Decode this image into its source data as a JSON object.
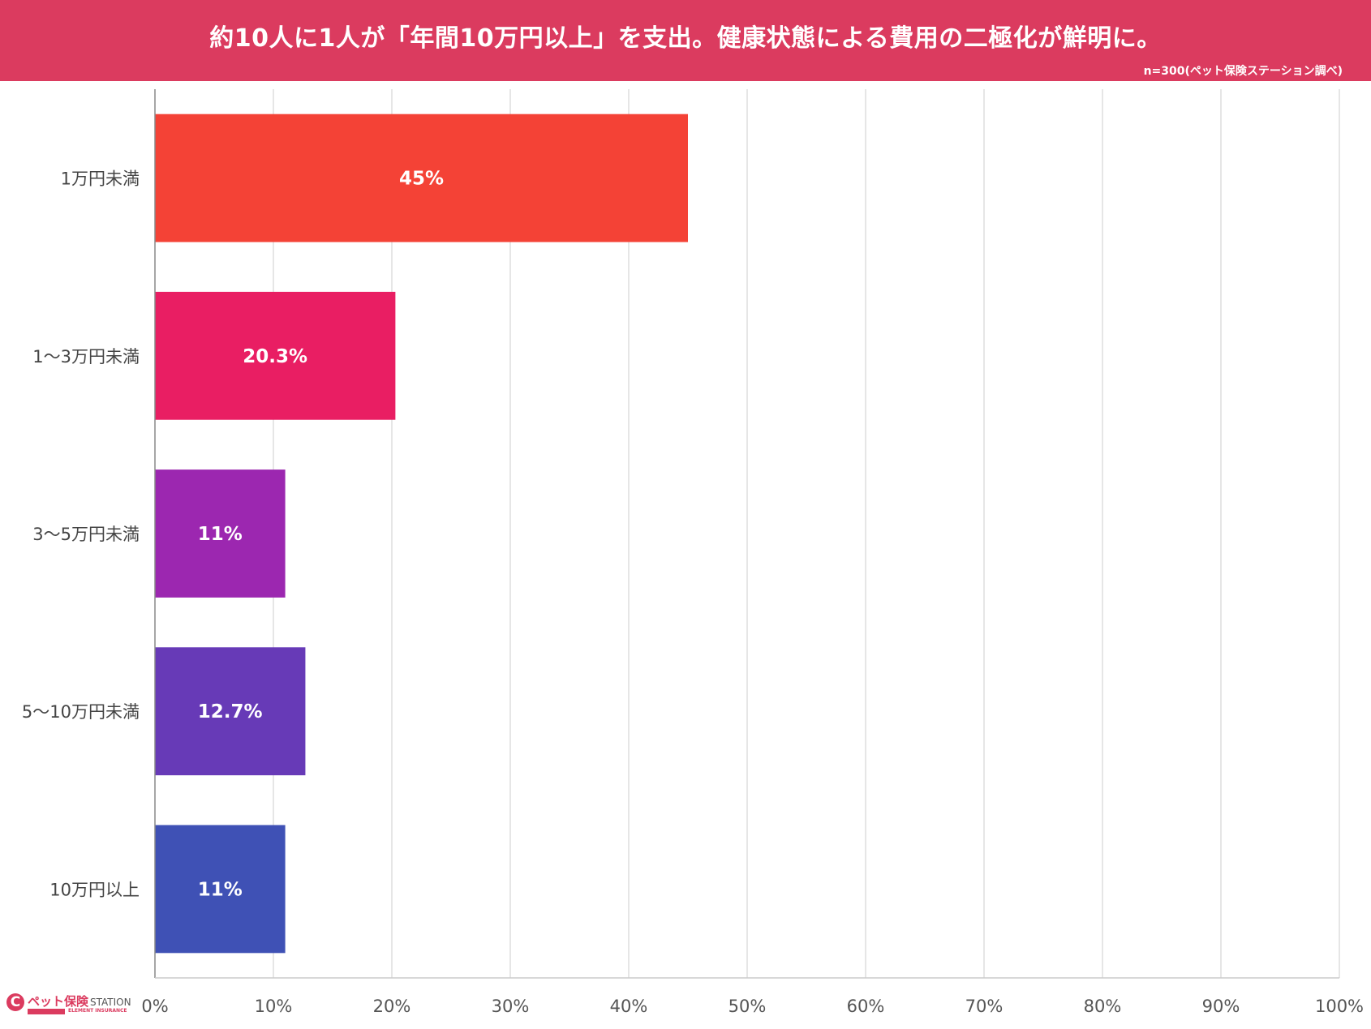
{
  "header": {
    "title": "約10人に1人が「年間10万円以上」を支出。健康状態による費用の二極化が鮮明に。",
    "note": "n=300(ペット保険ステーション調べ)",
    "color": "#db3b5f"
  },
  "chart_data": {
    "type": "bar",
    "orientation": "horizontal",
    "title": "約10人に1人が「年間10万円以上」を支出。健康状態による費用の二極化が鮮明に。",
    "categories": [
      "1万円未満",
      "1〜3万円未満",
      "3〜5万円未満",
      "5〜10万円未満",
      "10万円以上"
    ],
    "values": [
      45,
      20.3,
      11,
      12.7,
      11
    ],
    "data_labels": [
      "45%",
      "20.3%",
      "11%",
      "12.7%",
      "11%"
    ],
    "colors": [
      "#f44236",
      "#e91e63",
      "#9c27b0",
      "#673ab7",
      "#3f51b5"
    ],
    "xlim": [
      0,
      100
    ],
    "x_ticks": [
      0,
      10,
      20,
      30,
      40,
      50,
      60,
      70,
      80,
      90,
      100
    ],
    "x_tick_labels": [
      "0%",
      "10%",
      "20%",
      "30%",
      "40%",
      "50%",
      "60%",
      "70%",
      "80%",
      "90%",
      "100%"
    ],
    "grid": true,
    "legend": "none",
    "xlabel": "",
    "ylabel": ""
  },
  "logo": {
    "mark": "C",
    "name": "ペット保険",
    "station": "STATION",
    "tagline": "ELEMENT INSURANCE"
  }
}
